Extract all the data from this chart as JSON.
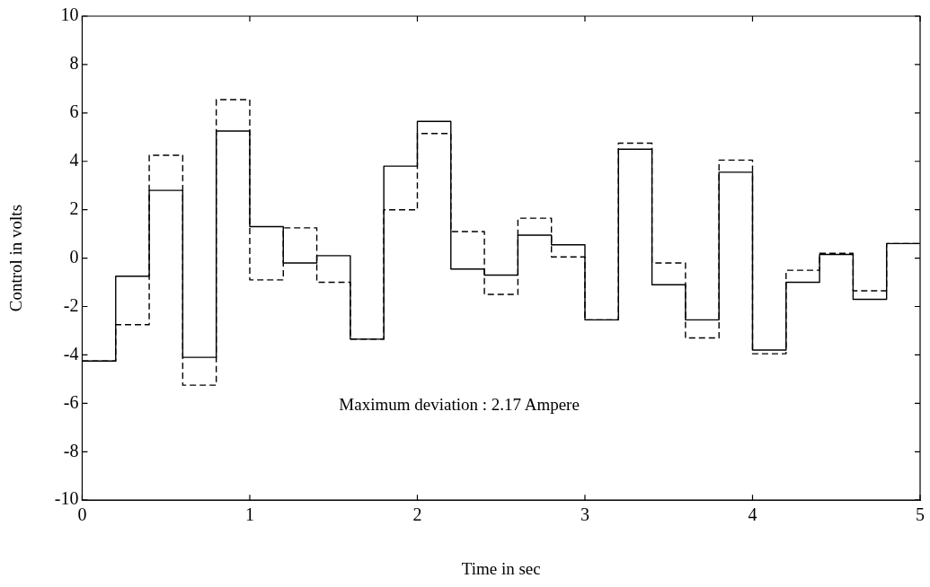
{
  "chart_data": {
    "type": "step",
    "xlabel": "Time in sec",
    "ylabel": "Control in volts",
    "x": [
      0,
      0.2,
      0.4,
      0.6,
      0.8,
      1.0,
      1.2,
      1.4,
      1.6,
      1.8,
      2.0,
      2.2,
      2.4,
      2.6,
      2.8,
      3.0,
      3.2,
      3.4,
      3.6,
      3.8,
      4.0,
      4.2,
      4.4,
      4.6,
      4.8,
      5.0
    ],
    "series": [
      {
        "color": "#000000",
        "line_style": "solid",
        "values": [
          -4.25,
          -0.75,
          2.8,
          -4.1,
          5.25,
          1.3,
          -0.2,
          0.1,
          -3.35,
          3.8,
          5.65,
          -0.45,
          -0.7,
          0.95,
          0.55,
          -2.55,
          4.5,
          -1.1,
          -2.55,
          3.55,
          -3.8,
          -1.0,
          0.15,
          -1.7,
          0.6,
          0.6
        ]
      },
      {
        "color": "#000000",
        "line_style": "dashed",
        "values": [
          -4.25,
          -2.75,
          4.25,
          -5.25,
          6.55,
          -0.9,
          1.25,
          -1.0,
          -3.35,
          2.0,
          5.15,
          1.1,
          -1.5,
          1.65,
          0.05,
          -2.55,
          4.75,
          -0.2,
          -3.3,
          4.05,
          -3.95,
          -0.5,
          0.2,
          -1.35,
          0.6,
          0.6
        ]
      }
    ],
    "xlim": [
      0,
      5
    ],
    "xticks": [
      0,
      1,
      2,
      3,
      4,
      5
    ],
    "ylim": [
      -10,
      10
    ],
    "yticks": [
      -10,
      -8,
      -6,
      -4,
      -2,
      0,
      2,
      4,
      6,
      8,
      10
    ],
    "grid": false,
    "legend": false,
    "marker": "none",
    "annotations": [
      "Maximum deviation : 2.17 Ampere"
    ]
  }
}
